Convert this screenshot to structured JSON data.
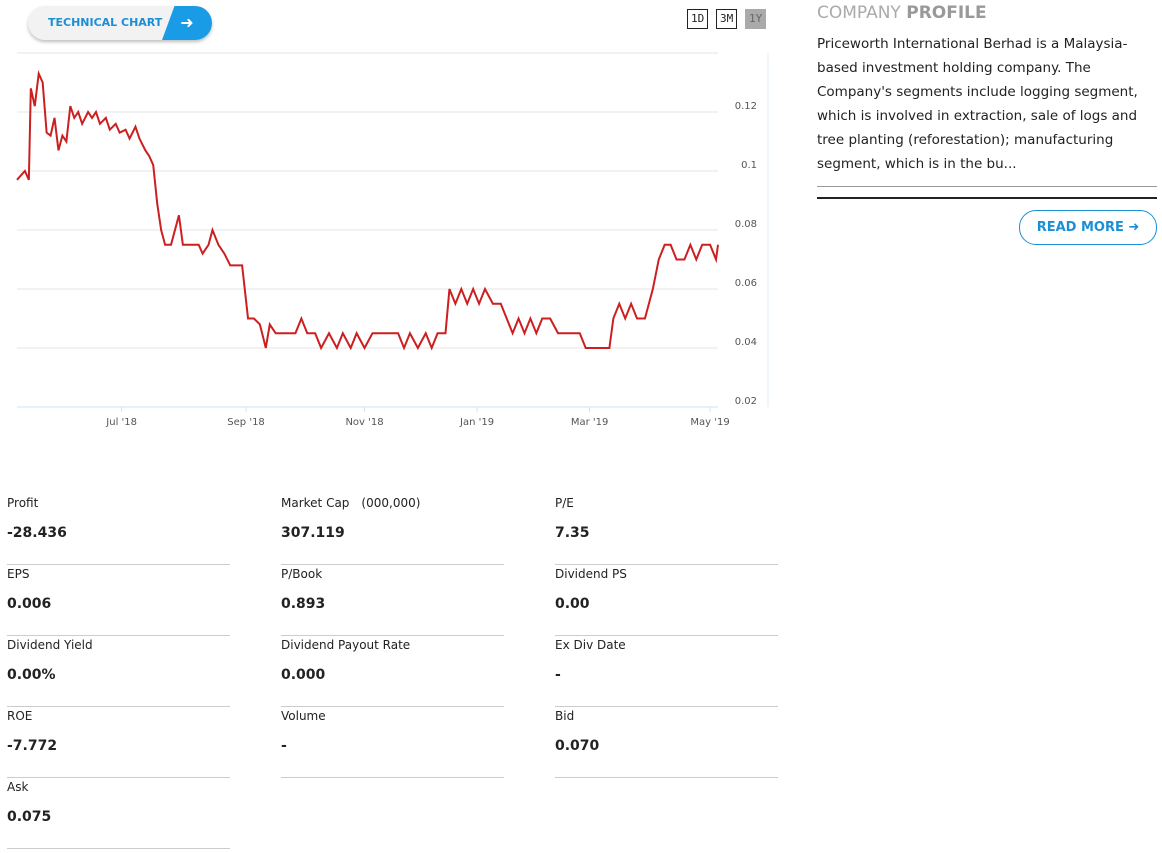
{
  "header": {
    "button": "TECHNICAL CHART",
    "ranges": [
      "1D",
      "3M",
      "1Y"
    ],
    "active_range": 2
  },
  "chart_data": {
    "type": "line",
    "color": "#cc1f1f",
    "grid": true,
    "x": [
      0,
      4,
      6,
      7,
      9,
      11,
      13,
      15,
      17,
      19,
      21,
      23,
      25,
      27,
      29,
      31,
      33,
      36,
      38,
      40,
      42,
      45,
      47,
      50,
      52,
      55,
      57,
      60,
      62,
      65,
      67,
      69,
      71,
      73,
      75,
      78,
      82,
      84,
      88,
      92,
      94,
      97,
      99,
      102,
      105,
      108,
      111,
      114,
      117,
      120,
      123,
      126,
      128,
      131,
      134,
      138,
      141,
      144,
      147,
      151,
      154,
      158,
      162,
      165,
      169,
      172,
      176,
      180,
      184,
      189,
      193,
      196,
      199,
      203,
      207,
      210,
      213,
      217,
      219,
      222,
      225,
      228,
      231,
      234,
      237,
      241,
      245,
      248,
      251,
      254,
      257,
      260,
      263,
      266,
      270,
      274,
      277,
      281,
      285,
      288,
      292,
      296,
      300,
      302,
      305,
      308,
      311,
      314,
      318,
      322,
      325,
      328,
      331,
      334,
      338,
      341,
      344,
      347,
      351,
      354,
      355
    ],
    "values": [
      0.097,
      0.1,
      0.097,
      0.128,
      0.122,
      0.133,
      0.13,
      0.113,
      0.112,
      0.118,
      0.107,
      0.112,
      0.11,
      0.122,
      0.118,
      0.12,
      0.116,
      0.12,
      0.118,
      0.12,
      0.116,
      0.118,
      0.114,
      0.116,
      0.113,
      0.114,
      0.111,
      0.115,
      0.111,
      0.107,
      0.105,
      0.102,
      0.089,
      0.08,
      0.075,
      0.075,
      0.085,
      0.075,
      0.075,
      0.075,
      0.072,
      0.075,
      0.08,
      0.075,
      0.072,
      0.068,
      0.068,
      0.068,
      0.05,
      0.05,
      0.048,
      0.04,
      0.048,
      0.045,
      0.045,
      0.045,
      0.045,
      0.05,
      0.045,
      0.045,
      0.04,
      0.045,
      0.04,
      0.045,
      0.04,
      0.045,
      0.04,
      0.045,
      0.045,
      0.045,
      0.045,
      0.04,
      0.045,
      0.04,
      0.045,
      0.04,
      0.045,
      0.045,
      0.06,
      0.055,
      0.06,
      0.055,
      0.06,
      0.055,
      0.06,
      0.055,
      0.055,
      0.05,
      0.045,
      0.05,
      0.045,
      0.05,
      0.045,
      0.05,
      0.05,
      0.045,
      0.045,
      0.045,
      0.045,
      0.04,
      0.04,
      0.04,
      0.04,
      0.05,
      0.055,
      0.05,
      0.055,
      0.05,
      0.05,
      0.06,
      0.07,
      0.075,
      0.075,
      0.07,
      0.07,
      0.075,
      0.07,
      0.075,
      0.075,
      0.07,
      0.075
    ],
    "xlim": [
      0,
      355
    ],
    "xticks": [
      {
        "value": 53,
        "label": "Jul '18"
      },
      {
        "value": 116,
        "label": "Sep '18"
      },
      {
        "value": 176,
        "label": "Nov '18"
      },
      {
        "value": 233,
        "label": "Jan '19"
      },
      {
        "value": 290,
        "label": "Mar '19"
      },
      {
        "value": 351,
        "label": "May '19"
      }
    ],
    "ylim": [
      0.02,
      0.14
    ],
    "yticks": [
      0.02,
      0.04,
      0.06,
      0.08,
      0.1,
      0.12
    ]
  },
  "profile": {
    "title_a": "COMPANY",
    "title_b": "PROFILE",
    "text": "Priceworth International Berhad is a Malaysia-based investment holding company. The Company's segments include logging segment, which is involved in extraction, sale of logs and tree planting (reforestation); manufacturing segment, which is in the bu...",
    "button": "READ MORE"
  },
  "stats": [
    {
      "label": "Profit",
      "value": "-28.436"
    },
    {
      "label": "Market Cap",
      "unit": "(000,000)",
      "value": "307.119"
    },
    {
      "label": "P/E",
      "value": "7.35"
    },
    {
      "label": "EPS",
      "value": "0.006"
    },
    {
      "label": "P/Book",
      "value": "0.893"
    },
    {
      "label": "Dividend PS",
      "value": "0.00"
    },
    {
      "label": "Dividend Yield",
      "value": "0.00%"
    },
    {
      "label": "Dividend Payout Rate",
      "value": "0.000"
    },
    {
      "label": "Ex Div Date",
      "value": "-"
    },
    {
      "label": "ROE",
      "value": "-7.772"
    },
    {
      "label": "Volume",
      "value": "-"
    },
    {
      "label": "Bid",
      "value": "0.070"
    },
    {
      "label": "Ask",
      "value": "0.075"
    }
  ]
}
